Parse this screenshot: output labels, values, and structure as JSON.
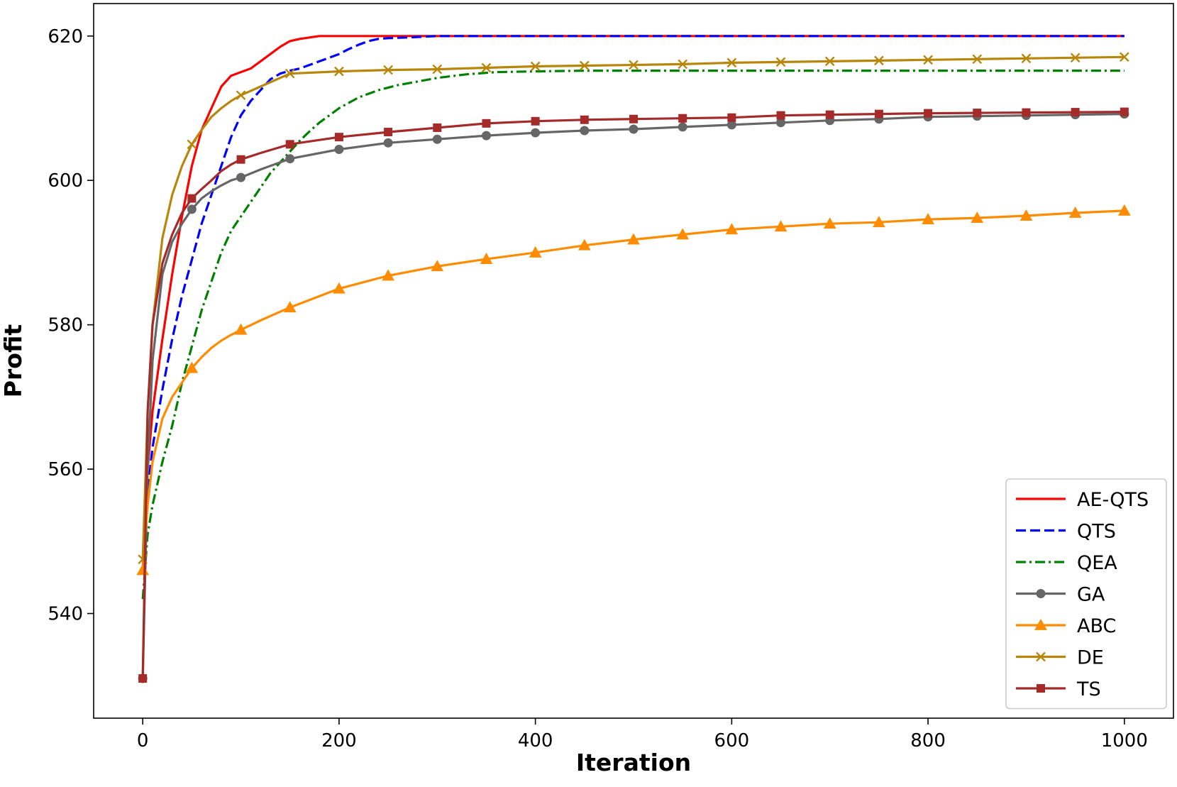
{
  "chart_data": {
    "type": "line",
    "title": "",
    "xlabel": "Iteration",
    "ylabel": "Profit",
    "xlim": [
      -50,
      1050
    ],
    "ylim": [
      525.5,
      624.5
    ],
    "xticks": [
      0,
      200,
      400,
      600,
      800,
      1000
    ],
    "yticks": [
      540,
      560,
      580,
      600,
      620
    ],
    "xtick_labels": [
      "0",
      "200",
      "400",
      "600",
      "800",
      "1000"
    ],
    "ytick_labels": [
      "540",
      "560",
      "580",
      "600",
      "620"
    ],
    "grid": false,
    "legend_position": "lower-right",
    "series": [
      {
        "name": "AE-QTS",
        "color": "#ff0000",
        "dash": "solid",
        "marker": "none",
        "x": [
          0,
          5,
          10,
          20,
          30,
          40,
          50,
          60,
          70,
          80,
          90,
          100,
          110,
          120,
          130,
          140,
          150,
          160,
          170,
          180,
          200,
          250,
          300,
          1000
        ],
        "y": [
          546,
          560,
          568,
          578,
          587,
          595,
          602,
          607,
          610,
          613,
          614.5,
          615,
          615.5,
          616.5,
          617.5,
          618.5,
          619.3,
          619.6,
          619.8,
          620,
          620,
          620,
          620,
          620
        ]
      },
      {
        "name": "QTS",
        "color": "#0000ff",
        "dash": "dashed",
        "marker": "none",
        "x": [
          0,
          5,
          10,
          20,
          30,
          40,
          50,
          60,
          70,
          80,
          90,
          100,
          110,
          120,
          130,
          140,
          150,
          160,
          170,
          180,
          190,
          200,
          210,
          220,
          230,
          240,
          250,
          270,
          300,
          1000
        ],
        "y": [
          545.5,
          557,
          563,
          571,
          578,
          584,
          589,
          594,
          598,
          602,
          606,
          609,
          611,
          612.5,
          614,
          614.8,
          615.2,
          615.5,
          616,
          616.5,
          617,
          617.5,
          618.2,
          618.8,
          619.3,
          619.6,
          619.7,
          619.8,
          620,
          620
        ]
      },
      {
        "name": "QEA",
        "color": "#008000",
        "dash": "dashdot",
        "marker": "none",
        "x": [
          0,
          5,
          10,
          20,
          30,
          40,
          50,
          60,
          70,
          80,
          90,
          100,
          110,
          120,
          130,
          140,
          150,
          160,
          170,
          180,
          190,
          200,
          220,
          240,
          260,
          280,
          300,
          330,
          360,
          400,
          450,
          1000
        ],
        "y": [
          542,
          551,
          555,
          561,
          566,
          572,
          577,
          582,
          586,
          590,
          593,
          595,
          597,
          599,
          601,
          602.5,
          604,
          605.5,
          606.8,
          608,
          609,
          610,
          611.5,
          612.5,
          613.2,
          613.7,
          614.2,
          614.7,
          615,
          615.1,
          615.2,
          615.2
        ]
      },
      {
        "name": "GA",
        "color": "#666666",
        "dash": "solid",
        "marker": "circle",
        "x": [
          0,
          5,
          10,
          20,
          30,
          40,
          50,
          60,
          70,
          80,
          90,
          100,
          120,
          150,
          200,
          250,
          300,
          350,
          400,
          450,
          500,
          550,
          600,
          650,
          700,
          750,
          800,
          850,
          900,
          950,
          1000
        ],
        "y": [
          531,
          560,
          575,
          587,
          591.5,
          594,
          596,
          597.5,
          598.5,
          599.3,
          600,
          600.4,
          601.5,
          603,
          604.3,
          605.2,
          605.7,
          606.2,
          606.6,
          606.9,
          607.1,
          607.4,
          607.7,
          608,
          608.3,
          608.5,
          608.8,
          608.9,
          609,
          609.1,
          609.2
        ],
        "marker_every": 50
      },
      {
        "name": "ABC",
        "color": "#ff8c00",
        "dash": "solid",
        "marker": "triangle",
        "x": [
          0,
          5,
          10,
          20,
          30,
          40,
          50,
          60,
          70,
          80,
          90,
          100,
          120,
          150,
          200,
          250,
          300,
          350,
          400,
          450,
          500,
          550,
          600,
          650,
          700,
          750,
          800,
          850,
          900,
          950,
          1000
        ],
        "y": [
          546,
          555,
          561,
          567,
          570,
          572,
          574,
          575.5,
          576.8,
          577.8,
          578.6,
          579.3,
          580.6,
          582.4,
          585,
          586.8,
          588.1,
          589.1,
          590,
          591,
          591.8,
          592.5,
          593.2,
          593.6,
          594,
          594.2,
          594.6,
          594.8,
          595.1,
          595.5,
          595.8
        ],
        "marker_every": 50
      },
      {
        "name": "DE",
        "color": "#b8860b",
        "dash": "solid",
        "marker": "x",
        "x": [
          0,
          5,
          10,
          20,
          30,
          40,
          50,
          60,
          70,
          80,
          90,
          100,
          120,
          150,
          200,
          250,
          300,
          350,
          400,
          450,
          500,
          550,
          600,
          650,
          700,
          750,
          800,
          850,
          900,
          950,
          1000
        ],
        "y": [
          547.5,
          568,
          580,
          592,
          598,
          602,
          605,
          607,
          608.8,
          610,
          611,
          611.8,
          613,
          614.8,
          615.1,
          615.3,
          615.4,
          615.6,
          615.8,
          615.9,
          616,
          616.1,
          616.3,
          616.4,
          616.5,
          616.6,
          616.7,
          616.8,
          616.9,
          617,
          617.1
        ],
        "marker_every": 50
      },
      {
        "name": "TS",
        "color": "#a52a2a",
        "dash": "solid",
        "marker": "square",
        "x": [
          0,
          5,
          10,
          20,
          30,
          40,
          50,
          60,
          70,
          80,
          90,
          100,
          120,
          150,
          200,
          250,
          300,
          350,
          400,
          450,
          500,
          550,
          600,
          650,
          700,
          750,
          800,
          850,
          900,
          950,
          1000
        ],
        "y": [
          531,
          568,
          580,
          588.5,
          592.5,
          595.5,
          597.5,
          598.8,
          600,
          601.3,
          602.2,
          602.9,
          603.8,
          605,
          606,
          606.7,
          607.3,
          607.9,
          608.2,
          608.4,
          608.5,
          608.6,
          608.7,
          609,
          609.1,
          609.2,
          609.3,
          609.35,
          609.4,
          609.45,
          609.5
        ],
        "marker_every": 50
      }
    ]
  }
}
